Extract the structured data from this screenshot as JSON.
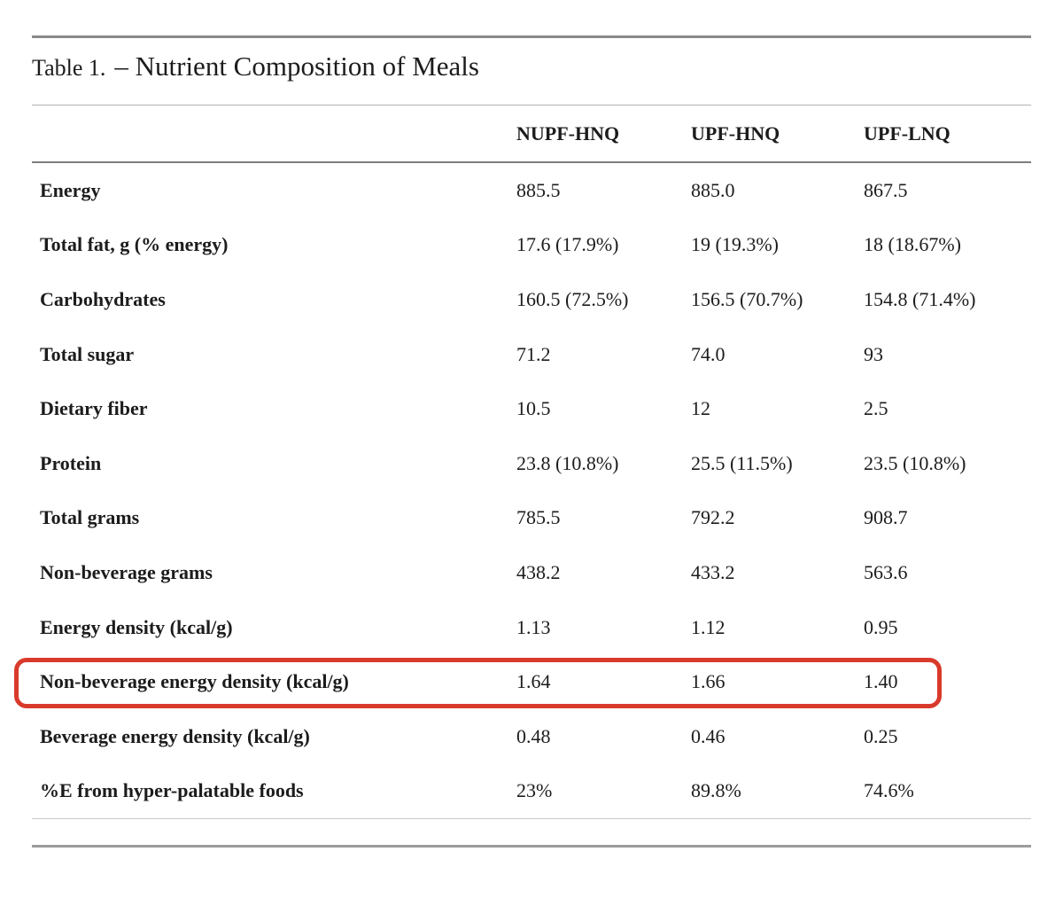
{
  "page": {
    "title_prefix": "Table 1.",
    "title_main": "– Nutrient Composition of Meals"
  },
  "table": {
    "columns": [
      "NUPF-HNQ",
      "UPF-HNQ",
      "UPF-LNQ"
    ],
    "rows": [
      {
        "label": "Energy",
        "values": [
          "885.5",
          "885.0",
          "867.5"
        ]
      },
      {
        "label": "Total fat, g (% energy)",
        "values": [
          "17.6 (17.9%)",
          "19 (19.3%)",
          "18 (18.67%)"
        ]
      },
      {
        "label": "Carbohydrates",
        "values": [
          "160.5 (72.5%)",
          "156.5 (70.7%)",
          "154.8 (71.4%)"
        ]
      },
      {
        "label": "Total sugar",
        "values": [
          "71.2",
          "74.0",
          "93"
        ]
      },
      {
        "label": "Dietary fiber",
        "values": [
          "10.5",
          "12",
          "2.5"
        ]
      },
      {
        "label": "Protein",
        "values": [
          "23.8 (10.8%)",
          "25.5 (11.5%)",
          "23.5 (10.8%)"
        ]
      },
      {
        "label": "Total grams",
        "values": [
          "785.5",
          "792.2",
          "908.7"
        ]
      },
      {
        "label": "Non-beverage grams",
        "values": [
          "438.2",
          "433.2",
          "563.6"
        ]
      },
      {
        "label": "Energy density (kcal/g)",
        "values": [
          "1.13",
          "1.12",
          "0.95"
        ]
      },
      {
        "label": "Non-beverage energy density (kcal/g)",
        "values": [
          "1.64",
          "1.66",
          "1.40"
        ],
        "highlighted": true
      },
      {
        "label": "Beverage energy density (kcal/g)",
        "values": [
          "0.48",
          "0.46",
          "0.25"
        ]
      },
      {
        "label": "%E from hyper-palatable foods",
        "values": [
          "23%",
          "89.8%",
          "74.6%"
        ]
      }
    ],
    "highlight": {
      "row_label": "Non-beverage energy density (kcal/g)",
      "color": "#d93a2b"
    }
  }
}
